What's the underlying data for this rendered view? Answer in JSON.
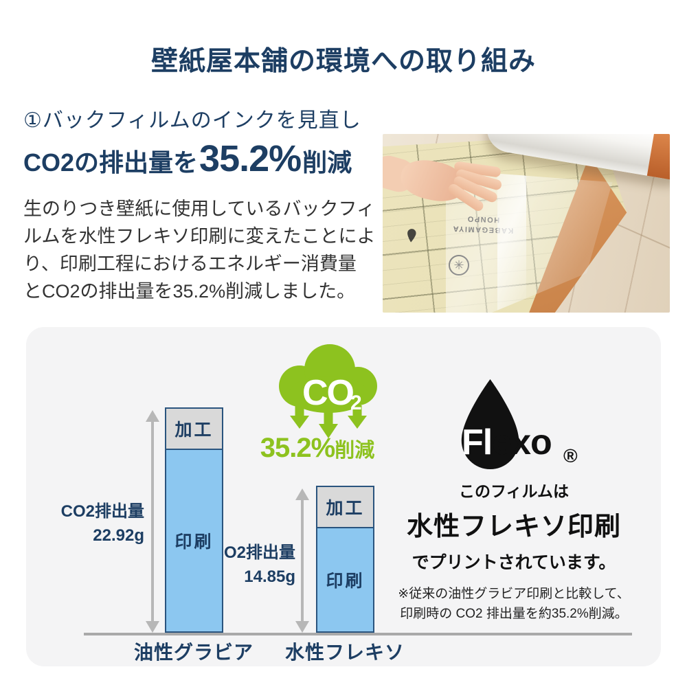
{
  "page_title": "壁紙屋本舗の環境への取り組み",
  "intro": {
    "heading": "①バックフィルムのインクを見直し",
    "highlight": {
      "prefix": "CO2の排出量を",
      "value": "35.2%",
      "suffix": "削減"
    },
    "body_lines": [
      "生のりつき壁紙に使用しているバックフィ",
      "ルムを水性フレキソ印刷に変えたことによ",
      "り、印刷工程におけるエネルギー消費量",
      "とCO2の排出量を35.2%削減しました。"
    ]
  },
  "photo": {
    "printed_text_line1": "KABEGAMIYA",
    "printed_text_line2": "HONPO",
    "flower_glyph": "✳"
  },
  "panel": {
    "co2_icon": {
      "text": "CO",
      "subscript": "2"
    },
    "reduction": {
      "value": "35.2%",
      "suffix": "削減"
    },
    "flexo": {
      "brand_left": "Fl",
      "brand_right": "exo",
      "mark": "®"
    },
    "caption": {
      "line1": "このフィルムは",
      "line2": "水性フレキソ印刷",
      "line3": "でプリントされています。"
    },
    "notes": [
      "※従来の油性グラビア印刷と比較して、",
      "印刷時の CO2 排出量を約35.2%削減。"
    ]
  },
  "chart_data": {
    "type": "bar",
    "stacked": true,
    "categories": [
      "油性グラビア",
      "水性フレキソ"
    ],
    "series": [
      {
        "name": "加工",
        "values": [
          4.25,
          4.25
        ],
        "color": "#d9d9d9"
      },
      {
        "name": "印刷",
        "values": [
          18.67,
          10.6
        ],
        "color": "#8cc7f0"
      }
    ],
    "totals": [
      22.92,
      14.85
    ],
    "measure_label": "CO2排出量",
    "measure_values": [
      "22.92g",
      "14.85g"
    ],
    "unit": "g",
    "ylim": [
      0,
      24
    ],
    "grid": false,
    "legend_position": "none"
  },
  "colors": {
    "navy": "#1d3e63",
    "body_text": "#333333",
    "bar_blue": "#8cc7f0",
    "bar_gray": "#d9d9d9",
    "bar_border": "#2a547e",
    "green": "#8dc21f",
    "panel_bg": "#f4f4f5",
    "baseline_gray": "#a9a9a9",
    "arrow_gray": "#b7b7b7",
    "black": "#111111"
  }
}
